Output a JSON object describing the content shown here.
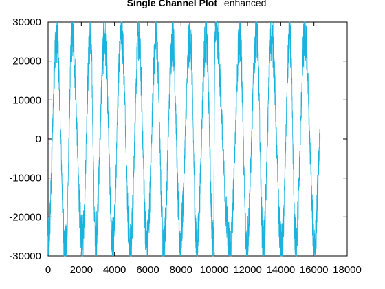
{
  "chart_data": {
    "type": "line",
    "title": "Single Channel Plot",
    "subtitle": "enhanced",
    "xlabel": "",
    "ylabel": "",
    "xlim": [
      0,
      18000
    ],
    "ylim": [
      -30000,
      30000
    ],
    "xticks": [
      0,
      2000,
      4000,
      6000,
      8000,
      10000,
      12000,
      14000,
      16000,
      18000
    ],
    "yticks": [
      -30000,
      -20000,
      -10000,
      0,
      10000,
      20000,
      30000
    ],
    "xtick_labels": [
      "0",
      "2000",
      "4000",
      "6000",
      "8000",
      "10000",
      "12000",
      "14000",
      "16000",
      "18000"
    ],
    "ytick_labels": [
      "-30000",
      "-20000",
      "-10000",
      "0",
      "10000",
      "20000",
      "30000"
    ],
    "grid": false,
    "series": [
      {
        "color": "#1ab3dd",
        "x_range": [
          0,
          16384
        ],
        "peaks": [
          {
            "x": 500,
            "y": 26000
          },
          {
            "x": 1450,
            "y": 26500
          },
          {
            "x": 2550,
            "y": 26500
          },
          {
            "x": 3400,
            "y": 25500
          },
          {
            "x": 4400,
            "y": 29000
          },
          {
            "x": 5450,
            "y": 26000
          },
          {
            "x": 6500,
            "y": 26000
          },
          {
            "x": 7500,
            "y": 26000
          },
          {
            "x": 8550,
            "y": 26000
          },
          {
            "x": 9500,
            "y": 26000
          },
          {
            "x": 10050,
            "y": 29500
          },
          {
            "x": 11550,
            "y": 26000
          },
          {
            "x": 12550,
            "y": 27500
          },
          {
            "x": 13450,
            "y": 26500
          },
          {
            "x": 14550,
            "y": 26000
          },
          {
            "x": 15450,
            "y": 26000
          }
        ],
        "troughs": [
          {
            "x": 0,
            "y": -27000
          },
          {
            "x": 1050,
            "y": -29000
          },
          {
            "x": 2050,
            "y": -26000
          },
          {
            "x": 2850,
            "y": -26000
          },
          {
            "x": 3900,
            "y": -27000
          },
          {
            "x": 4950,
            "y": -28500
          },
          {
            "x": 5950,
            "y": -27000
          },
          {
            "x": 6950,
            "y": -27000
          },
          {
            "x": 7950,
            "y": -26000
          },
          {
            "x": 8950,
            "y": -28000
          },
          {
            "x": 9950,
            "y": -27000
          },
          {
            "x": 10950,
            "y": -28000
          },
          {
            "x": 11950,
            "y": -27000
          },
          {
            "x": 12950,
            "y": -27000
          },
          {
            "x": 14050,
            "y": -28500
          },
          {
            "x": 14900,
            "y": -26500
          },
          {
            "x": 16050,
            "y": -27000
          }
        ],
        "end_value": {
          "x": 16384,
          "y": 0
        }
      }
    ]
  }
}
